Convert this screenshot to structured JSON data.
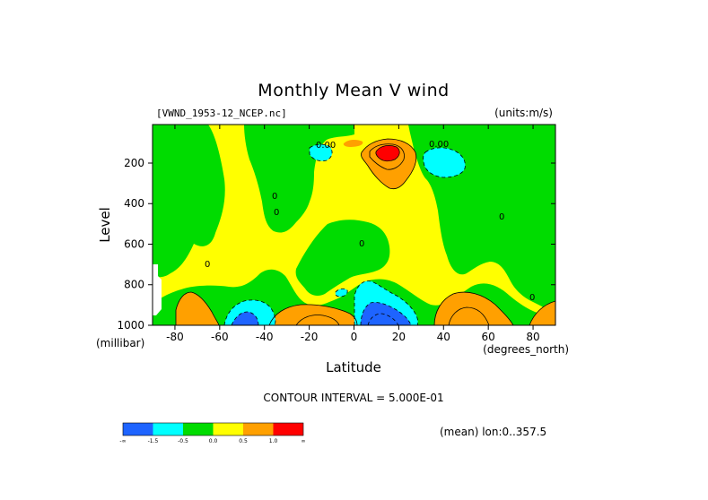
{
  "chart_data": {
    "type": "heatmap",
    "title": "Monthly Mean V wind",
    "dataset_label": "[VWND_1953-12_NCEP.nc]",
    "units_label": "(units:m/s)",
    "xlabel": "Latitude",
    "ylabel": "Level",
    "x_units": "(degrees_north)",
    "y_units": "(millibar)",
    "x_ticks": [
      -80,
      -60,
      -40,
      -20,
      0,
      20,
      40,
      60,
      80
    ],
    "y_ticks": [
      200,
      400,
      600,
      800,
      1000
    ],
    "xlim": [
      -90,
      90
    ],
    "ylim": [
      1000,
      10
    ],
    "y_reversed": true,
    "contour_interval": "CONTOUR INTERVAL = 5.000E-01",
    "mean_note": "(mean) lon:0..357.5",
    "grid": false,
    "legend": "bottom-left colorbar",
    "colorbar": {
      "colors": [
        "#1e64ff",
        "#00ffff",
        "#00dc00",
        "#ffff00",
        "#ffa000",
        "#ff0000"
      ],
      "labels": [
        "-∞",
        "-1.5",
        "-0.5",
        "0.0",
        "0.5",
        "1.0",
        "∞"
      ]
    },
    "contour_labels": [
      "0.00",
      "0.00",
      "0",
      "0",
      "0",
      "0",
      "0",
      "0"
    ],
    "features": [
      {
        "name": "upper max",
        "lat": 14,
        "level": 150,
        "value": 1.5
      },
      {
        "name": "upper min",
        "lat": 30,
        "level": 180,
        "value": -1.0
      },
      {
        "name": "upper min small",
        "lat": -15,
        "level": 150,
        "value": -0.6
      },
      {
        "name": "surface min",
        "lat": 15,
        "level": 950,
        "value": -2.0
      },
      {
        "name": "surface min",
        "lat": -42,
        "level": 960,
        "value": -1.2
      },
      {
        "name": "surface max",
        "lat": 45,
        "level": 950,
        "value": 0.9
      },
      {
        "name": "surface max",
        "lat": -20,
        "level": 960,
        "value": 0.6
      },
      {
        "name": "surface max",
        "lat": -83,
        "level": 960,
        "value": 0.6
      }
    ]
  }
}
